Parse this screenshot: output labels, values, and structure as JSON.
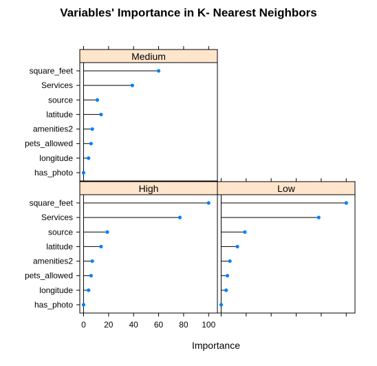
{
  "chart_data": {
    "type": "dotplot",
    "title": "Variables' Importance in K- Nearest Neighbors",
    "xlabel": "Importance",
    "xlim": [
      -3,
      107
    ],
    "x_ticks": [
      0,
      20,
      40,
      60,
      80,
      100
    ],
    "variables": [
      "square_feet",
      "Services",
      "source",
      "latitude",
      "amenities2",
      "pets_allowed",
      "longitude",
      "has_photo"
    ],
    "marker_color": "#0080ff",
    "strip_color": "#ffe5cc",
    "panels": [
      {
        "name": "Medium",
        "values": [
          60,
          39,
          11,
          14,
          7,
          6,
          4,
          0
        ]
      },
      {
        "name": "High",
        "values": [
          100,
          77,
          19,
          14,
          7,
          6,
          4,
          0
        ]
      },
      {
        "name": "Low",
        "values": [
          100,
          78,
          19,
          13,
          7,
          5,
          4,
          0
        ]
      }
    ]
  }
}
